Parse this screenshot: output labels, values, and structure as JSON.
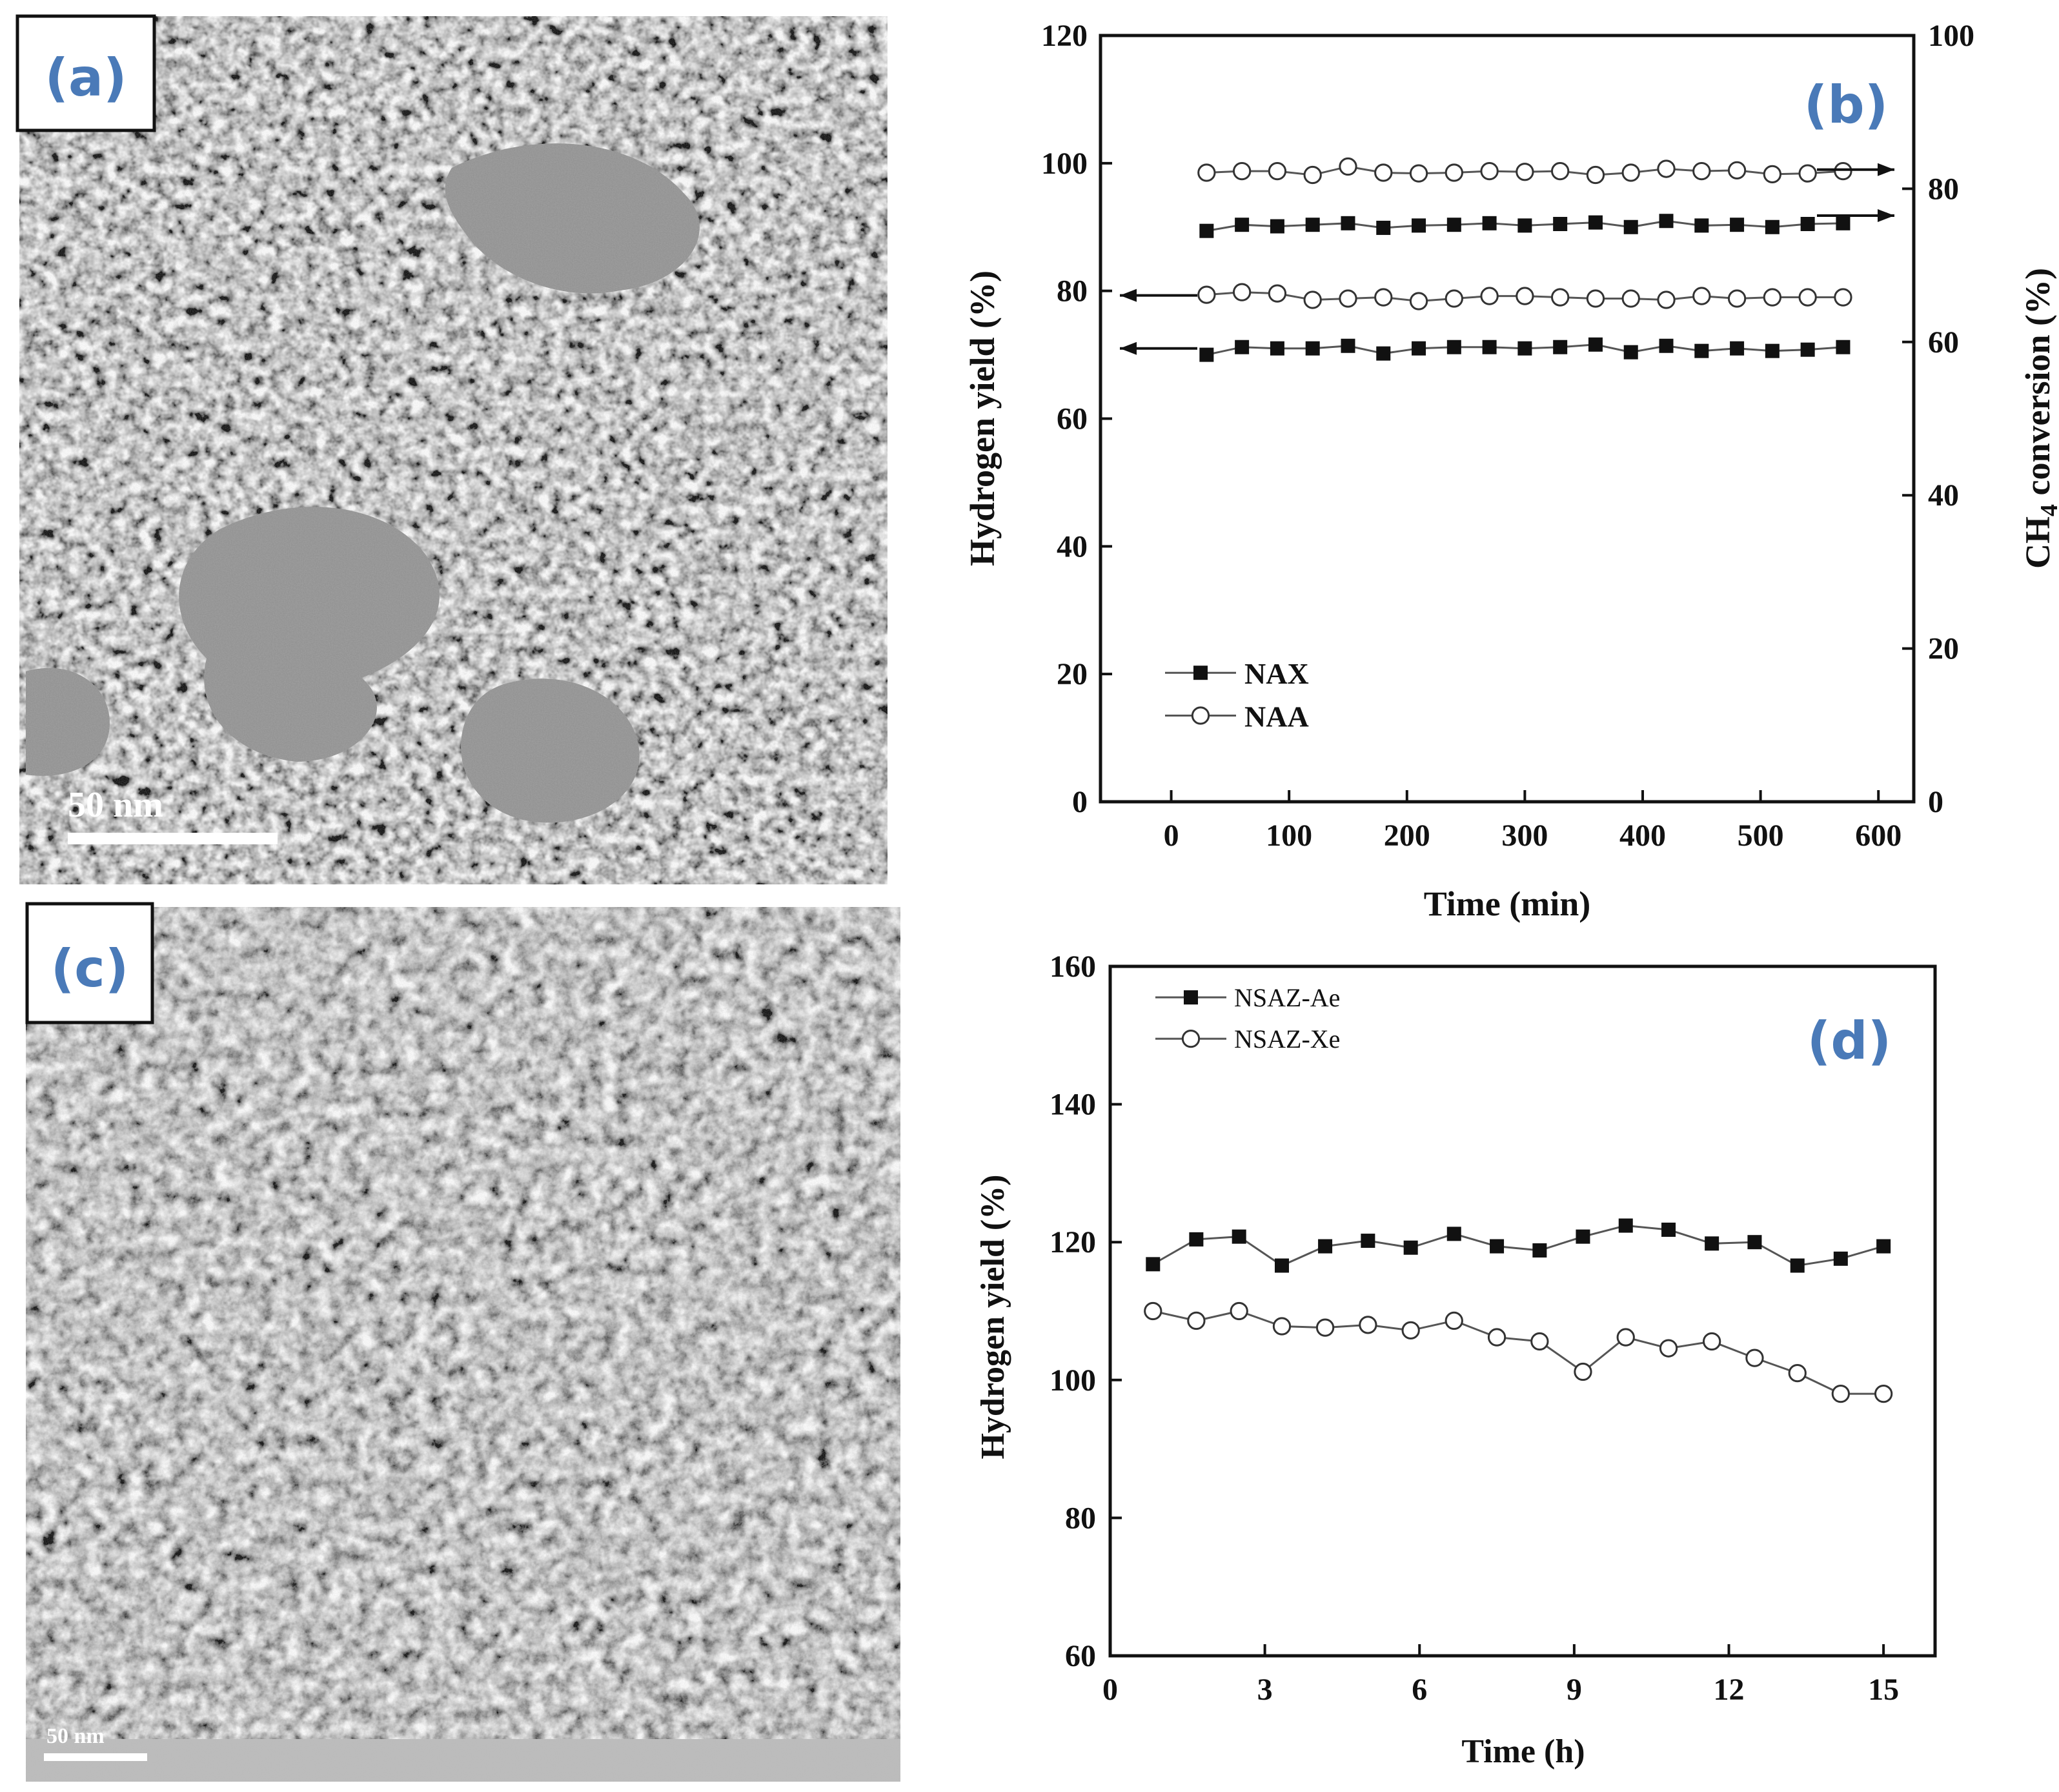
{
  "panels": {
    "a": {
      "label": "(a)",
      "scale_bar": "50 nm"
    },
    "b": {
      "label": "(b)"
    },
    "c": {
      "label": "(c)",
      "scale_bar": "50 nm"
    },
    "d": {
      "label": "(d)"
    }
  },
  "colors": {
    "panel_label": "#4a7ab8",
    "series_line": "#555555",
    "marker": "#111111",
    "tem_dark": "#2a2a2a",
    "tem_light": "#bdbdbd"
  },
  "chart_data": [
    {
      "id": "b",
      "type": "line",
      "title": "",
      "xlabel": "Time (min)",
      "ylabel": "Hydrogen yield (%)",
      "ylabel_right": "CH4 conversion (%)",
      "xlim": [
        -60,
        630
      ],
      "ylim": [
        0,
        120
      ],
      "ylim_right": [
        0,
        100
      ],
      "xticks": [
        0,
        100,
        200,
        300,
        400,
        500,
        600
      ],
      "yticks": [
        0,
        20,
        40,
        60,
        80,
        100,
        120
      ],
      "yticks_right": [
        0,
        20,
        40,
        60,
        80,
        100
      ],
      "legend": [
        "NAX",
        "NAA"
      ],
      "legend_position": "bottom-left",
      "x": [
        30,
        60,
        90,
        120,
        150,
        180,
        210,
        240,
        270,
        300,
        330,
        360,
        390,
        420,
        450,
        480,
        510,
        540,
        570
      ],
      "series": [
        {
          "name": "NAX",
          "axis": "left",
          "marker": "filled-square",
          "values": [
            70,
            71.2,
            71,
            71,
            71.4,
            70.2,
            71,
            71.2,
            71.2,
            71,
            71.2,
            71.6,
            70.4,
            71.4,
            70.6,
            71,
            70.6,
            70.8,
            71.2
          ]
        },
        {
          "name": "NAA",
          "axis": "left",
          "marker": "open-circle",
          "values": [
            79.4,
            79.8,
            79.6,
            78.6,
            78.8,
            79,
            78.4,
            78.8,
            79.2,
            79.2,
            79,
            78.8,
            78.8,
            78.6,
            79.2,
            78.8,
            79,
            79,
            79
          ]
        },
        {
          "name": "NAX",
          "axis": "right",
          "marker": "filled-square",
          "values": [
            74.5,
            75.3,
            75.1,
            75.3,
            75.5,
            74.9,
            75.2,
            75.3,
            75.5,
            75.2,
            75.4,
            75.6,
            75.0,
            75.8,
            75.2,
            75.3,
            75.0,
            75.4,
            75.5
          ]
        },
        {
          "name": "NAA",
          "axis": "right",
          "marker": "open-circle",
          "values": [
            82.1,
            82.3,
            82.3,
            81.8,
            82.9,
            82.1,
            82.0,
            82.1,
            82.3,
            82.2,
            82.3,
            81.8,
            82.1,
            82.6,
            82.3,
            82.4,
            81.9,
            82.0,
            82.3
          ]
        }
      ],
      "arrows": [
        {
          "direction": "left",
          "value": 79.3
        },
        {
          "direction": "left",
          "value": 71
        },
        {
          "direction": "right",
          "value_right": 82.5
        },
        {
          "direction": "right",
          "value_right": 76.5
        }
      ]
    },
    {
      "id": "d",
      "type": "line",
      "title": "",
      "xlabel": "Time (h)",
      "ylabel": "Hydrogen yield (%)",
      "xlim": [
        0,
        16
      ],
      "ylim": [
        60,
        160
      ],
      "xticks": [
        0,
        3,
        6,
        9,
        12,
        15
      ],
      "yticks": [
        60,
        80,
        100,
        120,
        140,
        160
      ],
      "legend": [
        "NSAZ-Ae",
        "NSAZ-Xe"
      ],
      "legend_position": "top-left",
      "x": [
        0.83,
        1.67,
        2.5,
        3.33,
        4.17,
        5,
        5.83,
        6.67,
        7.5,
        8.33,
        9.17,
        10,
        10.83,
        11.67,
        12.5,
        13.33,
        14.17,
        15
      ],
      "series": [
        {
          "name": "NSAZ-Ae",
          "marker": "filled-square",
          "values": [
            116.8,
            120.4,
            120.8,
            116.6,
            119.4,
            120.2,
            119.2,
            121.2,
            119.4,
            118.8,
            120.8,
            122.4,
            121.8,
            119.8,
            120,
            116.6,
            117.6,
            119.4
          ]
        },
        {
          "name": "NSAZ-Xe",
          "marker": "open-circle",
          "values": [
            110,
            108.6,
            110,
            107.8,
            107.6,
            108,
            107.2,
            108.6,
            106.2,
            105.6,
            101.2,
            106.2,
            104.6,
            105.6,
            103.2,
            101,
            98,
            98
          ]
        }
      ]
    }
  ]
}
